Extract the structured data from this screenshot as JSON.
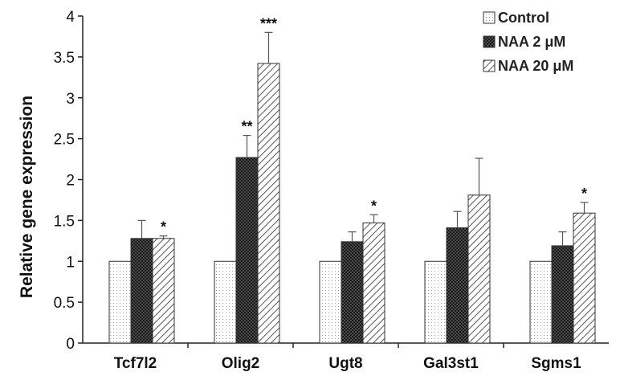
{
  "chart_data": {
    "type": "bar",
    "title": "",
    "xlabel": "",
    "ylabel": "Relative gene expression",
    "ylim": [
      0,
      4
    ],
    "yticks": [
      "0",
      "0.5",
      "1",
      "1.5",
      "2",
      "2.5",
      "3",
      "3.5",
      "4"
    ],
    "categories": [
      "Tcf7l2",
      "Olig2",
      "Ugt8",
      "Gal3st1",
      "Sgms1"
    ],
    "series": [
      {
        "name": "Control",
        "values": [
          1,
          1,
          1,
          1,
          1
        ],
        "errors": [
          0,
          0,
          0,
          0,
          0
        ],
        "significance": [
          "",
          "",
          "",
          "",
          ""
        ]
      },
      {
        "name": "NAA 2 μM",
        "values": [
          1.28,
          2.27,
          1.24,
          1.41,
          1.19
        ],
        "errors": [
          0.22,
          0.27,
          0.12,
          0.2,
          0.17
        ],
        "significance": [
          "",
          "**",
          "",
          "",
          ""
        ]
      },
      {
        "name": "NAA 20 μM",
        "values": [
          1.28,
          3.42,
          1.47,
          1.81,
          1.59
        ],
        "errors": [
          0.03,
          0.38,
          0.1,
          0.45,
          0.13
        ],
        "significance": [
          "*",
          "***",
          "*",
          "",
          "*"
        ]
      }
    ],
    "legend_position": "top-right",
    "grid": false
  }
}
